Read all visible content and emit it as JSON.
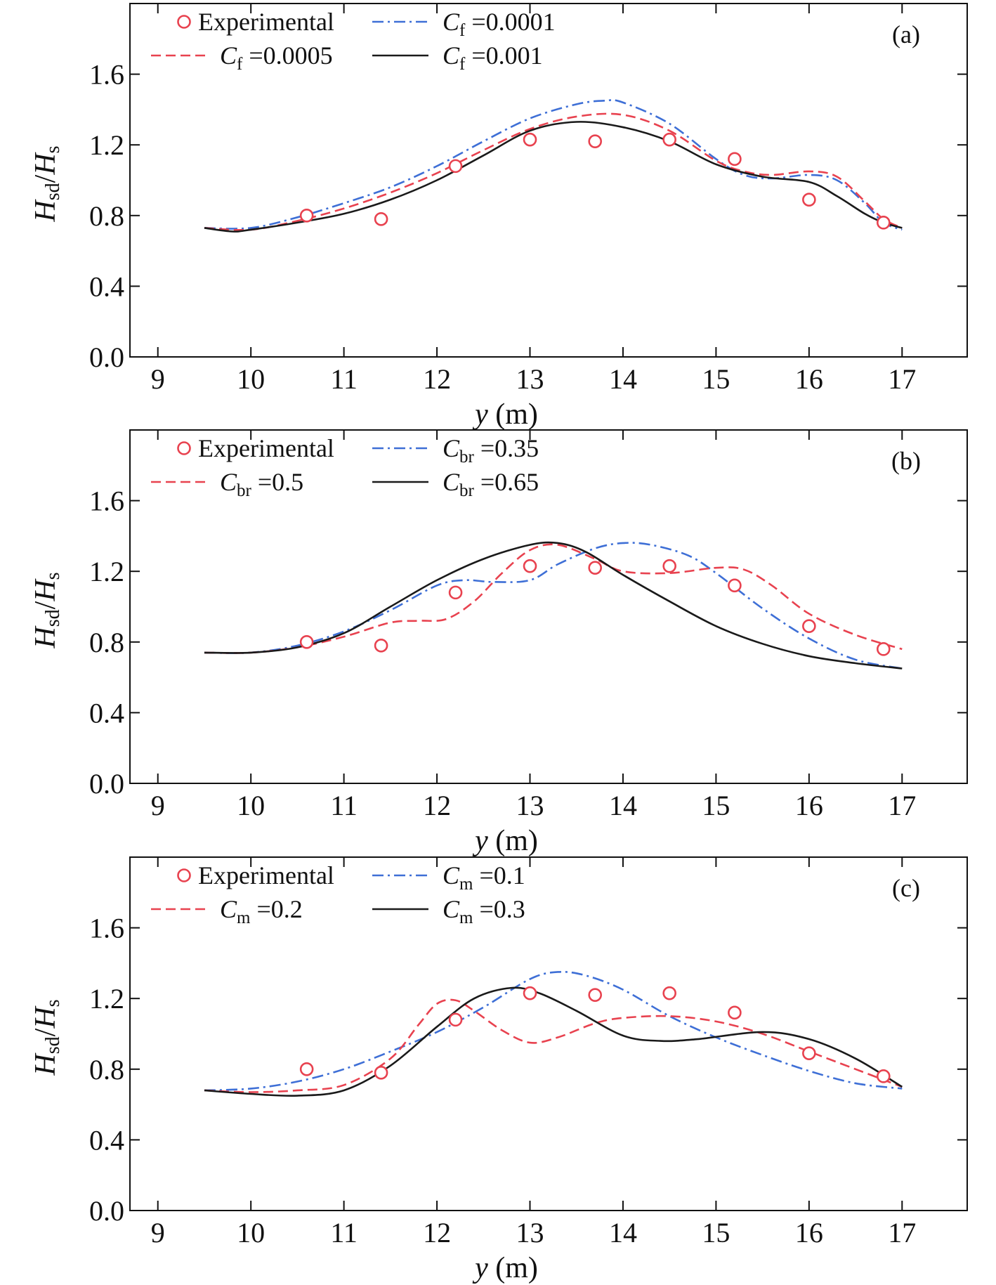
{
  "chart_data": [
    {
      "type": "line",
      "panel_label": "(a)",
      "xlabel": {
        "italic": "y",
        "unit": "(m)"
      },
      "ylabel": {
        "num_main": "H",
        "num_sub": "sd",
        "sep": "/",
        "den_main": "H",
        "den_sub": "s"
      },
      "xlim": [
        8.7,
        17.7
      ],
      "ylim": [
        0.0,
        2.0
      ],
      "xticks": [
        9,
        10,
        11,
        12,
        13,
        14,
        15,
        16,
        17
      ],
      "yticks": [
        0.0,
        0.4,
        0.8,
        1.2,
        1.6
      ],
      "ytick_labels": [
        "0.0",
        "0.4",
        "0.8",
        "1.2",
        "1.6"
      ],
      "grid": false,
      "legend_position": "top-left",
      "experimental": {
        "name": "Experimental",
        "color": "#e8424f",
        "x": [
          10.6,
          11.4,
          12.2,
          13.0,
          13.7,
          14.5,
          15.2,
          16.0,
          16.8
        ],
        "y": [
          0.8,
          0.78,
          1.08,
          1.23,
          1.22,
          1.23,
          1.12,
          0.89,
          0.76
        ]
      },
      "series": [
        {
          "symbol": "C",
          "sub": "f",
          "value": "=0.0001",
          "color": "#3e6fd6",
          "style": "dashdot",
          "x": [
            9.5,
            10.0,
            10.5,
            11.0,
            11.5,
            12.0,
            12.5,
            13.0,
            13.5,
            13.8,
            14.0,
            14.5,
            15.0,
            15.3,
            15.6,
            16.0,
            16.3,
            16.6,
            16.8,
            17.0
          ],
          "y": [
            0.73,
            0.73,
            0.79,
            0.87,
            0.96,
            1.08,
            1.22,
            1.35,
            1.43,
            1.45,
            1.44,
            1.32,
            1.12,
            1.03,
            1.01,
            1.03,
            1.0,
            0.87,
            0.76,
            0.72
          ]
        },
        {
          "symbol": "C",
          "sub": "f",
          "value": "=0.0005",
          "color": "#e8424f",
          "style": "dashed",
          "x": [
            9.5,
            10.0,
            10.5,
            11.0,
            11.5,
            12.0,
            12.5,
            13.0,
            13.5,
            14.0,
            14.5,
            15.0,
            15.3,
            15.6,
            16.0,
            16.3,
            16.6,
            16.8,
            17.0
          ],
          "y": [
            0.73,
            0.72,
            0.77,
            0.84,
            0.93,
            1.04,
            1.17,
            1.29,
            1.36,
            1.37,
            1.28,
            1.11,
            1.05,
            1.03,
            1.05,
            1.02,
            0.88,
            0.78,
            0.73
          ]
        },
        {
          "symbol": "C",
          "sub": "f",
          "value": "=0.001",
          "color": "#1a1a1a",
          "style": "solid",
          "x": [
            9.5,
            9.8,
            10.0,
            10.5,
            11.0,
            11.5,
            12.0,
            12.5,
            13.0,
            13.5,
            14.0,
            14.5,
            15.0,
            15.5,
            16.0,
            16.3,
            16.6,
            16.8,
            17.0
          ],
          "y": [
            0.73,
            0.71,
            0.72,
            0.76,
            0.81,
            0.89,
            1.0,
            1.14,
            1.28,
            1.33,
            1.3,
            1.22,
            1.09,
            1.02,
            0.99,
            0.91,
            0.81,
            0.76,
            0.73
          ]
        }
      ]
    },
    {
      "type": "line",
      "panel_label": "(b)",
      "xlabel": {
        "italic": "y",
        "unit": "(m)"
      },
      "ylabel": {
        "num_main": "H",
        "num_sub": "sd",
        "sep": "/",
        "den_main": "H",
        "den_sub": "s"
      },
      "xlim": [
        8.7,
        17.7
      ],
      "ylim": [
        0.0,
        2.0
      ],
      "xticks": [
        9,
        10,
        11,
        12,
        13,
        14,
        15,
        16,
        17
      ],
      "yticks": [
        0.0,
        0.4,
        0.8,
        1.2,
        1.6
      ],
      "ytick_labels": [
        "0.0",
        "0.4",
        "0.8",
        "1.2",
        "1.6"
      ],
      "grid": false,
      "legend_position": "top-left",
      "experimental": {
        "name": "Experimental",
        "color": "#e8424f",
        "x": [
          10.6,
          11.4,
          12.2,
          13.0,
          13.7,
          14.5,
          15.2,
          16.0,
          16.8
        ],
        "y": [
          0.8,
          0.78,
          1.08,
          1.23,
          1.22,
          1.23,
          1.12,
          0.89,
          0.76
        ]
      },
      "series": [
        {
          "symbol": "C",
          "sub": "br",
          "value": "=0.35",
          "color": "#3e6fd6",
          "style": "dashdot",
          "x": [
            9.5,
            10.0,
            10.5,
            11.0,
            11.5,
            12.0,
            12.3,
            12.6,
            13.0,
            13.3,
            13.7,
            14.0,
            14.3,
            14.7,
            15.0,
            15.5,
            16.0,
            16.5,
            17.0
          ],
          "y": [
            0.74,
            0.74,
            0.78,
            0.86,
            0.98,
            1.12,
            1.15,
            1.14,
            1.15,
            1.24,
            1.33,
            1.36,
            1.35,
            1.29,
            1.19,
            0.99,
            0.82,
            0.7,
            0.65
          ]
        },
        {
          "symbol": "C",
          "sub": "br",
          "value": "=0.5",
          "color": "#e8424f",
          "style": "dashed",
          "x": [
            9.5,
            10.0,
            10.5,
            11.0,
            11.5,
            11.8,
            12.1,
            12.4,
            12.7,
            13.0,
            13.3,
            13.7,
            14.0,
            14.5,
            15.0,
            15.3,
            15.6,
            16.0,
            16.5,
            17.0
          ],
          "y": [
            0.74,
            0.74,
            0.77,
            0.83,
            0.91,
            0.92,
            0.93,
            1.03,
            1.19,
            1.32,
            1.35,
            1.27,
            1.2,
            1.19,
            1.22,
            1.21,
            1.12,
            0.96,
            0.84,
            0.76
          ]
        },
        {
          "symbol": "C",
          "sub": "br",
          "value": "=0.65",
          "color": "#1a1a1a",
          "style": "solid",
          "x": [
            9.5,
            10.0,
            10.5,
            11.0,
            11.5,
            12.0,
            12.5,
            13.0,
            13.3,
            13.6,
            14.0,
            14.5,
            15.0,
            15.5,
            16.0,
            16.5,
            17.0
          ],
          "y": [
            0.74,
            0.74,
            0.77,
            0.85,
            1.0,
            1.15,
            1.27,
            1.35,
            1.36,
            1.31,
            1.18,
            1.03,
            0.89,
            0.79,
            0.72,
            0.68,
            0.65
          ]
        }
      ]
    },
    {
      "type": "line",
      "panel_label": "(c)",
      "xlabel": {
        "italic": "y",
        "unit": "(m)"
      },
      "ylabel": {
        "num_main": "H",
        "num_sub": "sd",
        "sep": "/",
        "den_main": "H",
        "den_sub": "s"
      },
      "xlim": [
        8.7,
        17.7
      ],
      "ylim": [
        0.0,
        2.0
      ],
      "xticks": [
        9,
        10,
        11,
        12,
        13,
        14,
        15,
        16,
        17
      ],
      "yticks": [
        0.0,
        0.4,
        0.8,
        1.2,
        1.6
      ],
      "ytick_labels": [
        "0.0",
        "0.4",
        "0.8",
        "1.2",
        "1.6"
      ],
      "grid": false,
      "legend_position": "top-left",
      "experimental": {
        "name": "Experimental",
        "color": "#e8424f",
        "x": [
          10.6,
          11.4,
          12.2,
          13.0,
          13.7,
          14.5,
          15.2,
          16.0,
          16.8
        ],
        "y": [
          0.8,
          0.78,
          1.08,
          1.23,
          1.22,
          1.23,
          1.12,
          0.89,
          0.76
        ]
      },
      "series": [
        {
          "symbol": "C",
          "sub": "m",
          "value": "=0.1",
          "color": "#3e6fd6",
          "style": "dashdot",
          "x": [
            9.5,
            10.0,
            10.5,
            11.0,
            11.5,
            12.0,
            12.5,
            13.0,
            13.3,
            13.6,
            14.0,
            14.5,
            15.0,
            15.5,
            16.0,
            16.5,
            17.0
          ],
          "y": [
            0.68,
            0.69,
            0.73,
            0.8,
            0.9,
            1.01,
            1.15,
            1.31,
            1.35,
            1.33,
            1.25,
            1.1,
            0.98,
            0.88,
            0.79,
            0.72,
            0.69
          ]
        },
        {
          "symbol": "C",
          "sub": "m",
          "value": "=0.2",
          "color": "#e8424f",
          "style": "dashed",
          "x": [
            9.5,
            10.0,
            10.5,
            11.0,
            11.5,
            11.8,
            12.0,
            12.2,
            12.4,
            12.7,
            13.0,
            13.3,
            13.7,
            14.0,
            14.5,
            15.0,
            15.5,
            16.0,
            16.5,
            17.0
          ],
          "y": [
            0.68,
            0.67,
            0.68,
            0.71,
            0.86,
            1.05,
            1.17,
            1.19,
            1.13,
            1.02,
            0.95,
            0.98,
            1.06,
            1.09,
            1.1,
            1.07,
            1.0,
            0.9,
            0.8,
            0.7
          ]
        },
        {
          "symbol": "C",
          "sub": "m",
          "value": "=0.3",
          "color": "#1a1a1a",
          "style": "solid",
          "x": [
            9.5,
            10.0,
            10.5,
            11.0,
            11.5,
            12.0,
            12.4,
            12.8,
            13.1,
            13.5,
            14.0,
            14.4,
            14.8,
            15.5,
            16.0,
            16.5,
            17.0
          ],
          "y": [
            0.68,
            0.66,
            0.65,
            0.68,
            0.82,
            1.04,
            1.2,
            1.26,
            1.23,
            1.13,
            0.99,
            0.96,
            0.97,
            1.01,
            0.97,
            0.86,
            0.7
          ]
        }
      ]
    }
  ]
}
